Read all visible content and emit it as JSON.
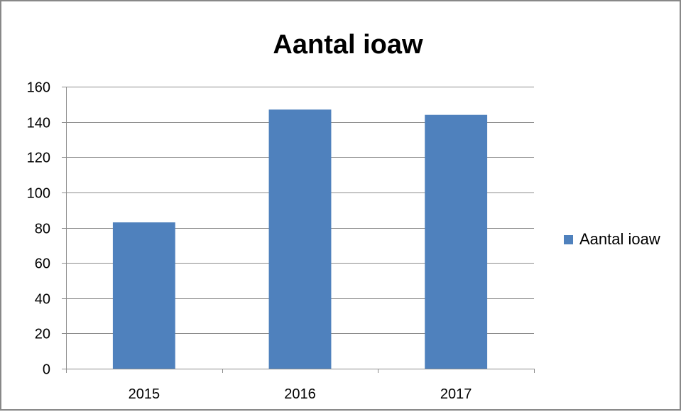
{
  "chart_data": {
    "type": "bar",
    "title": "Aantal ioaw",
    "categories": [
      "2015",
      "2016",
      "2017"
    ],
    "series": [
      {
        "name": "Aantal ioaw",
        "values": [
          83,
          147,
          144
        ],
        "color": "#4F81BD"
      }
    ],
    "ylim": [
      0,
      160
    ],
    "yticks": [
      0,
      20,
      40,
      60,
      80,
      100,
      120,
      140,
      160
    ],
    "grid": true,
    "legend_position": "right"
  }
}
